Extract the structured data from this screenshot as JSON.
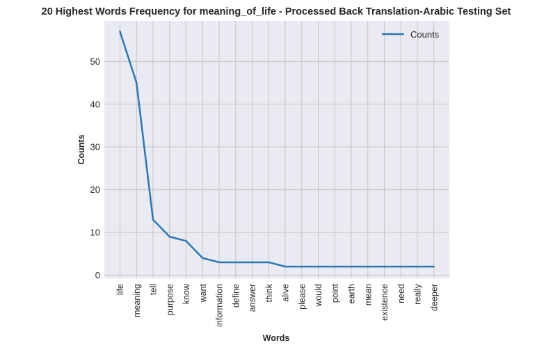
{
  "chart_data": {
    "type": "line",
    "title": "20 Highest Words Frequency for meaning_of_life - Processed Back Translation-Arabic Testing Set",
    "xlabel": "Words",
    "ylabel": "Counts",
    "categories": [
      "life",
      "meaning",
      "tell",
      "purpose",
      "know",
      "want",
      "information",
      "define",
      "answer",
      "think",
      "alive",
      "please",
      "would",
      "point",
      "earth",
      "mean",
      "existence",
      "need",
      "really",
      "deeper"
    ],
    "series": [
      {
        "name": "Counts",
        "values": [
          57,
          45,
          13,
          9,
          8,
          4,
          3,
          3,
          3,
          3,
          2,
          2,
          2,
          2,
          2,
          2,
          2,
          2,
          2,
          2
        ]
      }
    ],
    "yticks": [
      0,
      10,
      20,
      30,
      40,
      50
    ],
    "ylim": [
      -0.75,
      59.5
    ],
    "grid": true,
    "legend": "top-right",
    "colors": {
      "line": "#2a77b4",
      "plot_bg": "#eaeaf2",
      "grid": "#c4c4c4"
    }
  }
}
